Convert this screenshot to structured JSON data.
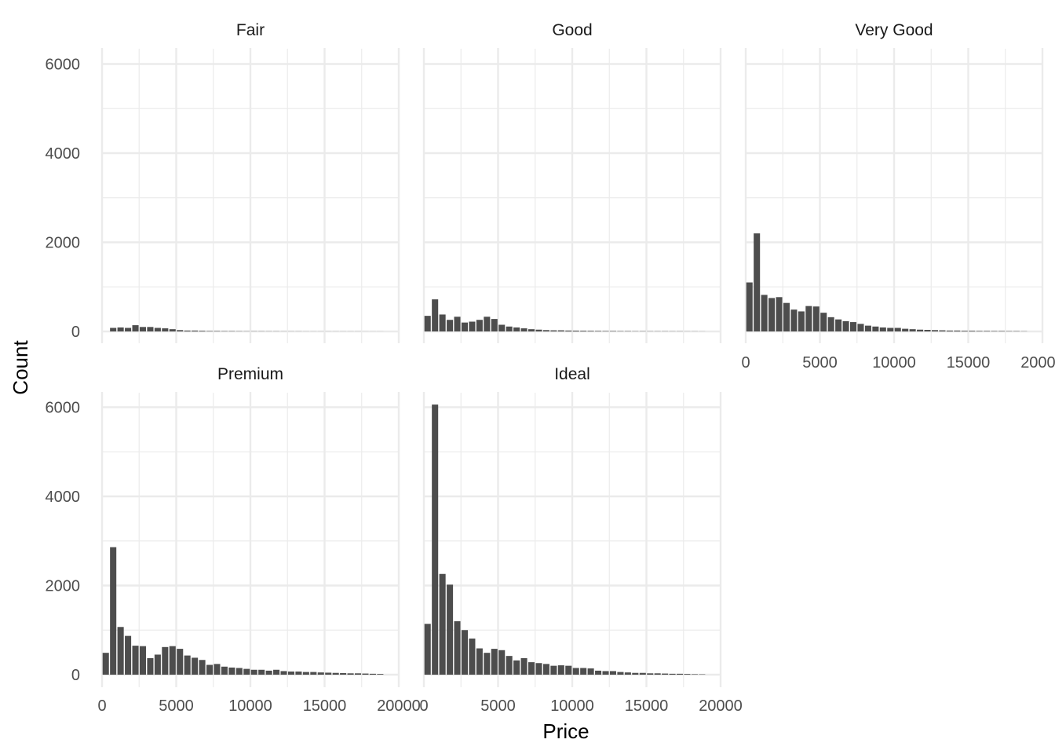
{
  "chart_data": {
    "type": "bar",
    "facet_by": "cut",
    "xlabel": "Price",
    "ylabel": "Count",
    "xlim": [
      0,
      20000
    ],
    "ylim": [
      0,
      6200
    ],
    "x_ticks": [
      0,
      5000,
      10000,
      15000,
      20000
    ],
    "x_tick_labels": [
      "0",
      "5000",
      "10000",
      "15000",
      "20000"
    ],
    "y_ticks": [
      0,
      2000,
      4000,
      6000
    ],
    "y_tick_labels": [
      "0",
      "2000",
      "4000",
      "6000"
    ],
    "bin_width": 500,
    "bin_centers": [
      250,
      750,
      1250,
      1750,
      2250,
      2750,
      3250,
      3750,
      4250,
      4750,
      5250,
      5750,
      6250,
      6750,
      7250,
      7750,
      8250,
      8750,
      9250,
      9750,
      10250,
      10750,
      11250,
      11750,
      12250,
      12750,
      13250,
      13750,
      14250,
      14750,
      15250,
      15750,
      16250,
      16750,
      17250,
      17750,
      18250,
      18750
    ],
    "bar_color": "#4d4d4d",
    "grid": true,
    "panels": [
      {
        "name": "Fair",
        "values": [
          0,
          80,
          90,
          80,
          140,
          100,
          100,
          80,
          70,
          50,
          30,
          20,
          20,
          15,
          10,
          10,
          8,
          8,
          6,
          5,
          5,
          5,
          4,
          4,
          3,
          3,
          3,
          2,
          2,
          2,
          2,
          2,
          2,
          2,
          2,
          1,
          1,
          1
        ]
      },
      {
        "name": "Good",
        "values": [
          350,
          720,
          380,
          260,
          330,
          200,
          220,
          260,
          330,
          280,
          150,
          110,
          90,
          70,
          50,
          40,
          30,
          25,
          25,
          20,
          18,
          16,
          14,
          12,
          10,
          10,
          8,
          8,
          6,
          6,
          5,
          5,
          5,
          4,
          4,
          3,
          3,
          2
        ]
      },
      {
        "name": "Very Good",
        "values": [
          1100,
          2200,
          820,
          750,
          770,
          640,
          490,
          450,
          570,
          560,
          420,
          320,
          270,
          230,
          210,
          170,
          130,
          110,
          90,
          80,
          80,
          60,
          50,
          40,
          35,
          30,
          25,
          20,
          20,
          15,
          15,
          12,
          12,
          10,
          10,
          8,
          8,
          5
        ]
      },
      {
        "name": "Premium",
        "values": [
          490,
          2860,
          1070,
          870,
          650,
          640,
          370,
          450,
          620,
          640,
          580,
          430,
          380,
          330,
          220,
          240,
          180,
          160,
          150,
          130,
          110,
          110,
          90,
          110,
          80,
          70,
          70,
          60,
          60,
          50,
          45,
          40,
          35,
          30,
          30,
          25,
          20,
          15
        ]
      },
      {
        "name": "Ideal",
        "values": [
          1140,
          6060,
          2260,
          2020,
          1200,
          1000,
          810,
          590,
          490,
          580,
          550,
          420,
          320,
          370,
          280,
          260,
          240,
          200,
          210,
          200,
          150,
          150,
          140,
          90,
          80,
          80,
          60,
          50,
          40,
          40,
          30,
          30,
          25,
          20,
          20,
          15,
          10,
          8
        ]
      }
    ]
  }
}
